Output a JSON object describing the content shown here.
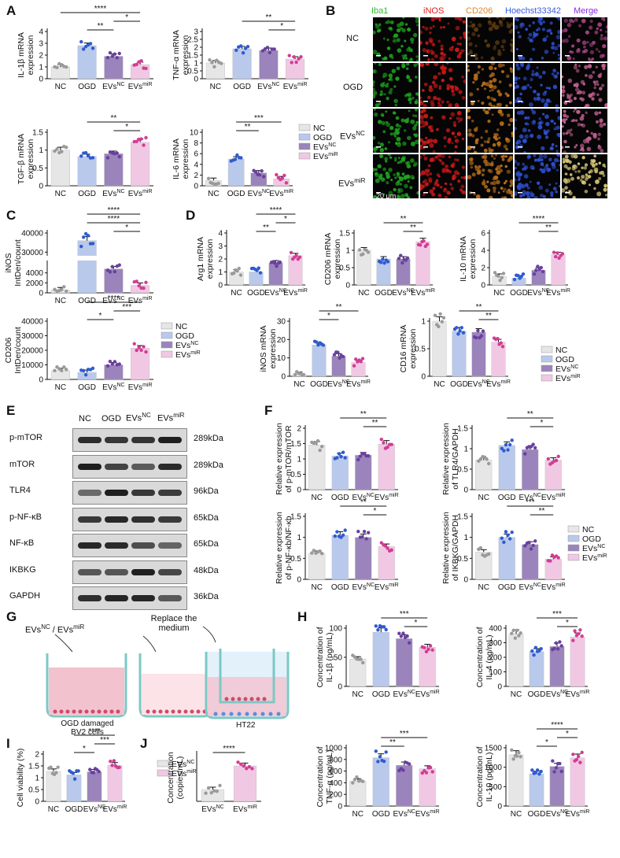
{
  "panel_labels": [
    "A",
    "B",
    "C",
    "D",
    "E",
    "F",
    "G",
    "H",
    "I",
    "J"
  ],
  "groups": [
    "NC",
    "OGD",
    "EVsNC",
    "EVsmiR"
  ],
  "colors": {
    "NC": "#e6e6e6",
    "OGD": "#b9c9ec",
    "EVsNC": "#9a84bb",
    "EVsmiR": "#f1c8e3",
    "dot_NC": "#9a9a9a",
    "dot_OGD": "#2f5bd0",
    "dot_EVsNC": "#6a3fa0",
    "dot_EVsmiR": "#d33c95"
  },
  "legend": [
    {
      "label": "NC",
      "sup": ""
    },
    {
      "label": "OGD",
      "sup": ""
    },
    {
      "label": "EVs",
      "sup": "NC"
    },
    {
      "label": "EVs",
      "sup": "miR"
    }
  ],
  "legendJ": [
    {
      "label": "EVs",
      "sup": "NC"
    },
    {
      "label": "EVs",
      "sup": "miR"
    }
  ],
  "panelB": {
    "columns": [
      "Iba1",
      "iNOS",
      "CD206",
      "Hoechst33342",
      "Merge"
    ],
    "column_colors": [
      "#2fbf2f",
      "#e02020",
      "#d98a2a",
      "#3a5be0",
      "#8a2be2"
    ],
    "rows": [
      {
        "label": "NC",
        "sup": ""
      },
      {
        "label": "OGD",
        "sup": ""
      },
      {
        "label": "EVs",
        "sup": "NC"
      },
      {
        "label": "EVs",
        "sup": "miR"
      }
    ],
    "scalebar": "20 μm"
  },
  "panelE": {
    "header": [
      {
        "label": "NC",
        "sup": ""
      },
      {
        "label": "OGD",
        "sup": ""
      },
      {
        "label": "EVs",
        "sup": "NC"
      },
      {
        "label": "EVs",
        "sup": "miR"
      }
    ],
    "rows": [
      {
        "protein": "p-mTOR",
        "size": "289kDa"
      },
      {
        "protein": "mTOR",
        "size": "289kDa"
      },
      {
        "protein": "TLR4",
        "size": "96kDa"
      },
      {
        "protein": "p-NF-κB",
        "size": "65kDa"
      },
      {
        "protein": "NF-κB",
        "size": "65kDa"
      },
      {
        "protein": "IKBKG",
        "size": "48kDa"
      },
      {
        "protein": "GAPDH",
        "size": "36kDa"
      }
    ]
  },
  "panelG": {
    "label1_main": "EVs",
    "label1_sup1": "NC",
    "label1_sep": " / EVs",
    "label1_sup2": "miR",
    "label2": "Replace the",
    "label2b": "medium",
    "caption1": "OGD damaged",
    "caption1b": "BV2 cells",
    "caption2": "HT22"
  },
  "chart_data": [
    {
      "id": "A1",
      "type": "bar",
      "ylabel": [
        "IL-1β mRNA",
        "expression"
      ],
      "ylim": [
        0,
        4
      ],
      "ticks": [
        0,
        1,
        2,
        3,
        4
      ],
      "values": [
        1.0,
        2.8,
        1.9,
        1.2
      ],
      "sig": [
        {
          "a": 1,
          "b": 2,
          "t": "**"
        },
        {
          "a": 2,
          "b": 3,
          "t": "*"
        },
        {
          "a": 0,
          "b": 3,
          "t": "****"
        }
      ]
    },
    {
      "id": "A2",
      "type": "bar",
      "ylabel": [
        "TNF-α mRNA",
        "expression"
      ],
      "ylim": [
        0,
        3
      ],
      "ticks": [
        0.0,
        0.5,
        1.0,
        1.5,
        2.0,
        2.5,
        3.0
      ],
      "values": [
        1.0,
        1.9,
        1.8,
        1.25
      ],
      "sig": [
        {
          "a": 2,
          "b": 3,
          "t": "*"
        },
        {
          "a": 1,
          "b": 3,
          "t": "**"
        }
      ]
    },
    {
      "id": "A3",
      "type": "bar",
      "ylabel": [
        "TGF-β mRNA",
        "expression"
      ],
      "ylim": [
        0,
        1.5
      ],
      "ticks": [
        0.0,
        0.5,
        1.0,
        1.5
      ],
      "values": [
        1.0,
        0.82,
        0.9,
        1.22
      ],
      "sig": [
        {
          "a": 2,
          "b": 3,
          "t": "*"
        },
        {
          "a": 1,
          "b": 3,
          "t": "**"
        }
      ]
    },
    {
      "id": "A4",
      "type": "bar",
      "ylabel": [
        "IL-6 mRNA",
        "expression"
      ],
      "ylim": [
        0,
        10
      ],
      "ticks": [
        0,
        2,
        4,
        6,
        8,
        10
      ],
      "values": [
        1.0,
        5.0,
        2.4,
        1.3
      ],
      "sig": [
        {
          "a": 1,
          "b": 2,
          "t": "**"
        },
        {
          "a": 1,
          "b": 3,
          "t": "***"
        }
      ]
    },
    {
      "id": "C1",
      "type": "bar",
      "ylabel": [
        "iNOS",
        "IntDen/count"
      ],
      "broken": true,
      "ylim": [
        0,
        40000
      ],
      "ticks": [
        0,
        2000,
        4000,
        30000,
        40000
      ],
      "values": [
        600,
        36000,
        4800,
        1500
      ],
      "sig": [
        {
          "a": 2,
          "b": 3,
          "t": "*"
        },
        {
          "a": 1,
          "b": 3,
          "t": "****"
        },
        {
          "a": 1,
          "b": 3,
          "t": "****"
        }
      ]
    },
    {
      "id": "C2",
      "type": "bar",
      "ylabel": [
        "CD206",
        "IntDen/count"
      ],
      "ylim": [
        0,
        40000
      ],
      "ticks": [
        0,
        10000,
        20000,
        30000,
        40000
      ],
      "values": [
        6000,
        4800,
        10000,
        21500
      ],
      "sig": [
        {
          "a": 1,
          "b": 2,
          "t": "*"
        },
        {
          "a": 2,
          "b": 3,
          "t": "***"
        },
        {
          "a": 1,
          "b": 3,
          "t": "****"
        }
      ]
    },
    {
      "id": "D1",
      "type": "bar",
      "ylabel": [
        "Arg1 mRNA",
        "expression"
      ],
      "ylim": [
        0,
        4
      ],
      "ticks": [
        0,
        1,
        2,
        3,
        4
      ],
      "values": [
        1.0,
        1.0,
        1.7,
        2.25
      ],
      "sig": [
        {
          "a": 1,
          "b": 2,
          "t": "**"
        },
        {
          "a": 2,
          "b": 3,
          "t": "*"
        },
        {
          "a": 1,
          "b": 3,
          "t": "****"
        }
      ]
    },
    {
      "id": "D2",
      "type": "bar",
      "ylabel": [
        "CD206 mRNA",
        "expression"
      ],
      "ylim": [
        0,
        1.5
      ],
      "ticks": [
        0.0,
        0.5,
        1.0,
        1.5
      ],
      "values": [
        1.0,
        0.75,
        0.75,
        1.25
      ],
      "sig": [
        {
          "a": 2,
          "b": 3,
          "t": "**"
        },
        {
          "a": 1,
          "b": 3,
          "t": "**"
        }
      ]
    },
    {
      "id": "D3",
      "type": "bar",
      "ylabel": [
        "IL-10 mRNA",
        "expression"
      ],
      "ylim": [
        0,
        6
      ],
      "ticks": [
        0,
        2,
        4,
        6
      ],
      "values": [
        1.0,
        0.8,
        1.7,
        3.5
      ],
      "sig": [
        {
          "a": 2,
          "b": 3,
          "t": "**"
        },
        {
          "a": 1,
          "b": 3,
          "t": "****"
        }
      ]
    },
    {
      "id": "D4",
      "type": "bar",
      "ylabel": [
        "iNOS mRNA",
        "expression"
      ],
      "ylim": [
        0,
        30
      ],
      "ticks": [
        0,
        10,
        20,
        30
      ],
      "values": [
        1.0,
        17.0,
        11.0,
        7.5
      ],
      "sig": [
        {
          "a": 1,
          "b": 2,
          "t": "*"
        },
        {
          "a": 1,
          "b": 3,
          "t": "**"
        }
      ]
    },
    {
      "id": "D5",
      "type": "bar",
      "ylabel": [
        "CD16 mRNA",
        "expression"
      ],
      "ylim": [
        0,
        1.0
      ],
      "ticks": [
        0.0,
        0.5,
        1.0
      ],
      "values": [
        1.0,
        0.82,
        0.8,
        0.62
      ],
      "sig": [
        {
          "a": 2,
          "b": 3,
          "t": "**"
        },
        {
          "a": 1,
          "b": 3,
          "t": "**"
        }
      ]
    },
    {
      "id": "F1",
      "type": "bar",
      "ylabel": [
        "Relative expression",
        "of p-mTOR/mTOR"
      ],
      "ylim": [
        0,
        2.0
      ],
      "ticks": [
        0.0,
        0.5,
        1.0,
        1.5,
        2.0
      ],
      "values": [
        1.45,
        1.1,
        1.12,
        1.48
      ],
      "sig": [
        {
          "a": 2,
          "b": 3,
          "t": "**"
        },
        {
          "a": 1,
          "b": 3,
          "t": "**"
        }
      ]
    },
    {
      "id": "F2",
      "type": "bar",
      "ylabel": [
        "Relative expression",
        "of TLR4/GAPDH"
      ],
      "ylim": [
        0,
        1.5
      ],
      "ticks": [
        0.0,
        0.5,
        1.0,
        1.5
      ],
      "values": [
        0.72,
        1.08,
        0.98,
        0.72
      ],
      "sig": [
        {
          "a": 2,
          "b": 3,
          "t": "*"
        },
        {
          "a": 1,
          "b": 3,
          "t": "**"
        }
      ]
    },
    {
      "id": "F3",
      "type": "bar",
      "ylabel": [
        "Relative expression",
        "of p-NF-κb/NF-κb"
      ],
      "ylim": [
        0,
        1.5
      ],
      "ticks": [
        0.0,
        0.5,
        1.0,
        1.5
      ],
      "values": [
        0.62,
        1.05,
        1.0,
        0.78
      ],
      "sig": [
        {
          "a": 2,
          "b": 3,
          "t": "*"
        },
        {
          "a": 1,
          "b": 3,
          "t": "**"
        }
      ]
    },
    {
      "id": "F4",
      "type": "bar",
      "ylabel": [
        "Relative expression",
        "of IKBKG/GAPDH"
      ],
      "ylim": [
        0,
        1.5
      ],
      "ticks": [
        0.0,
        0.5,
        1.0,
        1.5
      ],
      "values": [
        0.65,
        1.0,
        0.83,
        0.48
      ],
      "sig": [
        {
          "a": 2,
          "b": 3,
          "t": "**"
        },
        {
          "a": 1,
          "b": 3,
          "t": "***"
        }
      ]
    },
    {
      "id": "H1",
      "type": "bar",
      "ylabel": [
        "Concentration of",
        "IL-1β (pg/mL)"
      ],
      "ylim": [
        0,
        100
      ],
      "ticks": [
        0,
        50,
        100
      ],
      "values": [
        47,
        93,
        82,
        67
      ],
      "sig": [
        {
          "a": 2,
          "b": 3,
          "t": "*"
        },
        {
          "a": 1,
          "b": 3,
          "t": "***"
        }
      ]
    },
    {
      "id": "H2",
      "type": "bar",
      "ylabel": [
        "Concentration of",
        "IL-4 (pg/mL)"
      ],
      "ylim": [
        0,
        400
      ],
      "ticks": [
        0,
        100,
        200,
        300,
        400
      ],
      "values": [
        360,
        240,
        275,
        340
      ],
      "sig": [
        {
          "a": 2,
          "b": 3,
          "t": "*"
        },
        {
          "a": 1,
          "b": 3,
          "t": "***"
        }
      ]
    },
    {
      "id": "H3",
      "type": "bar",
      "ylabel": [
        "Concentration of",
        "TNF-α (pg/mL)"
      ],
      "ylim": [
        0,
        1000
      ],
      "ticks": [
        0,
        200,
        400,
        600,
        800,
        1000
      ],
      "values": [
        430,
        830,
        700,
        640
      ],
      "sig": [
        {
          "a": 1,
          "b": 2,
          "t": "**"
        },
        {
          "a": 1,
          "b": 3,
          "t": "***"
        }
      ]
    },
    {
      "id": "H4",
      "type": "bar",
      "ylabel": [
        "Concentration of",
        "IL-10 (pg/mL)"
      ],
      "ylim": [
        0,
        1500
      ],
      "ticks": [
        0,
        500,
        1000,
        1500
      ],
      "values": [
        1320,
        830,
        1020,
        1240
      ],
      "sig": [
        {
          "a": 1,
          "b": 2,
          "t": "*"
        },
        {
          "a": 2,
          "b": 3,
          "t": "*"
        },
        {
          "a": 1,
          "b": 3,
          "t": "****"
        }
      ]
    },
    {
      "id": "I1",
      "type": "bar",
      "ylabel": [
        "Cell viability (%)"
      ],
      "ylim": [
        0,
        2.0
      ],
      "ticks": [
        0.0,
        0.5,
        1.0,
        1.5,
        2.0
      ],
      "values": [
        1.27,
        1.12,
        1.25,
        1.52
      ],
      "sig": [
        {
          "a": 1,
          "b": 2,
          "t": "*"
        },
        {
          "a": 2,
          "b": 3,
          "t": "***"
        },
        {
          "a": 1,
          "b": 3,
          "t": "****"
        }
      ]
    },
    {
      "id": "J1",
      "type": "bar",
      "ylabel": [
        "Concentration",
        "(copies/mL)"
      ],
      "ylim": [
        0,
        6
      ],
      "ticks": [],
      "values": [
        1.5,
        4.5
      ],
      "sig": [
        {
          "a": 0,
          "b": 1,
          "t": "****"
        }
      ]
    }
  ]
}
